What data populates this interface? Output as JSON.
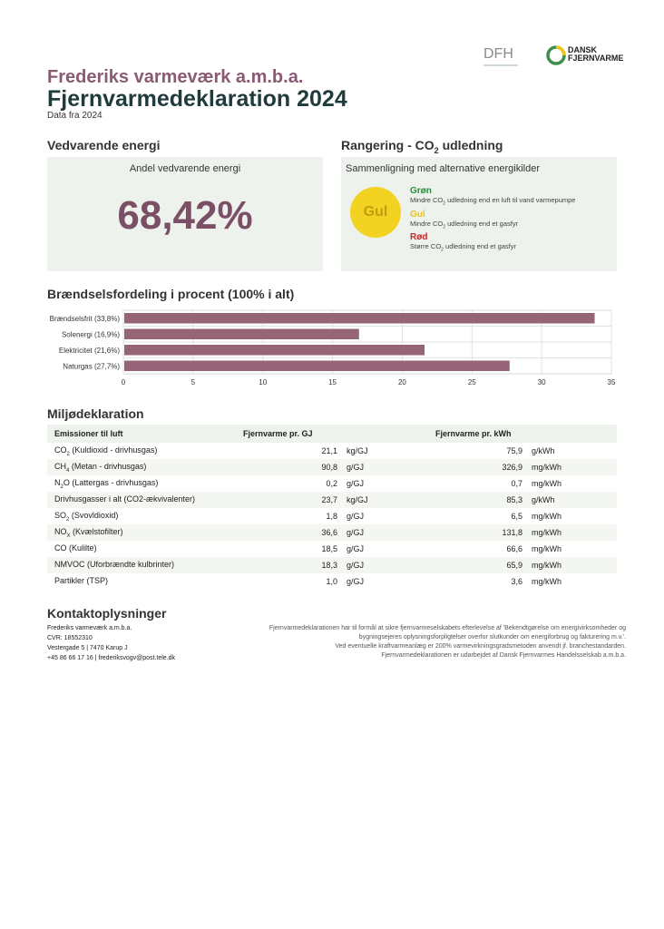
{
  "logos": {
    "dfh_text": "DFH",
    "df_line1": "DANSK",
    "df_line2": "FJERNVARME"
  },
  "header": {
    "org": "Frederiks varmeværk a.m.b.a.",
    "title": "Fjernvarmedeklaration 2024",
    "data_year": "Data fra 2024"
  },
  "energy": {
    "heading": "Vedvarende energi",
    "label": "Andel vedvarende energi",
    "value": "68,42%"
  },
  "ranking": {
    "heading_pre": "Rangering - CO",
    "heading_sub": "2",
    "heading_post": " udledning",
    "subtitle": "Sammenligning med alternative energikilder",
    "badge": "Gul",
    "badge_color": "#f2d321",
    "levels": [
      {
        "name": "Grøn",
        "color": "#2e8b3d",
        "d_pre": "Mindre CO",
        "d_sub": "2",
        "d_post": " udledning end en luft til vand varmepumpe"
      },
      {
        "name": "Gul",
        "color": "#e8c41a",
        "d_pre": "Mindre CO",
        "d_sub": "2",
        "d_post": " udledning end et gasfyr"
      },
      {
        "name": "Rød",
        "color": "#c0282d",
        "d_pre": "Større CO",
        "d_sub": "2",
        "d_post": " udledning end et gasfyr"
      }
    ]
  },
  "fuel": {
    "heading": "Brændselsfordeling i procent (100% i alt)"
  },
  "chart_data": {
    "type": "bar",
    "orientation": "horizontal",
    "categories": [
      "Brændselsfrit (33,8%)",
      "Solenergi (16,9%)",
      "Elektricitet (21,6%)",
      "Naturgas (27,7%)"
    ],
    "values": [
      33.8,
      16.9,
      21.6,
      27.7
    ],
    "xlim": [
      0,
      35
    ],
    "xticks": [
      "0",
      "5",
      "10",
      "15",
      "20",
      "25",
      "30",
      "35"
    ],
    "bar_color": "#956577",
    "grid": true
  },
  "env": {
    "heading": "Miljødeklaration",
    "col1": "Emissioner til luft",
    "col2": "Fjernvarme pr. GJ",
    "col3": "Fjernvarme pr. kWh",
    "rows": [
      {
        "pre": "CO",
        "sub": "2",
        "post": " (Kuldioxid - drivhusgas)",
        "v1": "21,1",
        "u1": "kg/GJ",
        "v2": "75,9",
        "u2": "g/kWh"
      },
      {
        "pre": "CH",
        "sub": "4",
        "post": " (Metan - drivhusgas)",
        "v1": "90,8",
        "u1": "g/GJ",
        "v2": "326,9",
        "u2": "mg/kWh"
      },
      {
        "pre": "N",
        "sub": "2",
        "post": "O (Lattergas - drivhusgas)",
        "v1": "0,2",
        "u1": "g/GJ",
        "v2": "0,7",
        "u2": "mg/kWh"
      },
      {
        "pre": "Drivhusgasser i alt (CO2-ækvivalenter)",
        "sub": "",
        "post": "",
        "v1": "23,7",
        "u1": "kg/GJ",
        "v2": "85,3",
        "u2": "g/kWh"
      },
      {
        "pre": "SO",
        "sub": "2",
        "post": " (Svovldioxid)",
        "v1": "1,8",
        "u1": "g/GJ",
        "v2": "6,5",
        "u2": "mg/kWh"
      },
      {
        "pre": "NO",
        "sub": "X",
        "post": " (Kvælstofilter)",
        "v1": "36,6",
        "u1": "g/GJ",
        "v2": "131,8",
        "u2": "mg/kWh"
      },
      {
        "pre": "CO (Kulilte)",
        "sub": "",
        "post": "",
        "v1": "18,5",
        "u1": "g/GJ",
        "v2": "66,6",
        "u2": "mg/kWh"
      },
      {
        "pre": "NMVOC (Uforbrændte kulbrinter)",
        "sub": "",
        "post": "",
        "v1": "18,3",
        "u1": "g/GJ",
        "v2": "65,9",
        "u2": "mg/kWh"
      },
      {
        "pre": "Partikler (TSP)",
        "sub": "",
        "post": "",
        "v1": "1,0",
        "u1": "g/GJ",
        "v2": "3,6",
        "u2": "mg/kWh"
      }
    ]
  },
  "contact": {
    "heading": "Kontaktoplysninger",
    "lines": [
      "Frederiks varmeværk a.m.b.a.",
      "CVR: 18552310",
      "Vestergade 5 | 7470 Karup J",
      "+45 86 66 17 16 | frederiksvogv@post.tele.dk"
    ]
  },
  "disclaimer": [
    "Fjernvarmedeklarationen har til formål at sikre fjernvarmeselskabets efterlevelse af 'Bekendtgørelse om energivirksomheder og",
    "bygningsejeres oplysningsforpligtelser overfor slutkunder om energiforbrug og fakturering m.v.'.",
    "Ved eventuelle kraftvarmeanlæg er 200% varmevirkningsgradsmetoden anvendt jf. branchestandarden.",
    "Fjernvarmedeklarationen er udarbejdet af Dansk Fjernvarmes Handelsselskab a.m.b.a."
  ]
}
